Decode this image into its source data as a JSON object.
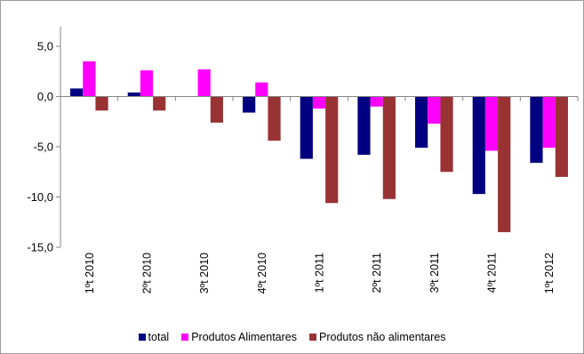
{
  "chart_data": {
    "type": "bar",
    "categories": [
      "1ºt 2010",
      "2ºt 2010",
      "3ºt 2010",
      "4ºt 2010",
      "1ºt 2011",
      "2ºt 2011",
      "3ºt 2011",
      "4ºt 2011",
      "1ºt 2012"
    ],
    "series": [
      {
        "name": "total",
        "color": "#000080",
        "values": [
          0.8,
          0.4,
          0.0,
          -1.6,
          -6.2,
          -5.8,
          -5.1,
          -9.7,
          -6.6
        ]
      },
      {
        "name": "Produtos Alimentares",
        "color": "#ff00ff",
        "values": [
          3.5,
          2.6,
          2.7,
          1.4,
          -1.2,
          -1.0,
          -2.7,
          -5.4,
          -5.1
        ]
      },
      {
        "name": "Produtos não alimentares",
        "color": "#993333",
        "values": [
          -1.4,
          -1.4,
          -2.6,
          -4.4,
          -10.6,
          -10.2,
          -7.5,
          -13.5,
          -8.0
        ]
      }
    ],
    "yticks": [
      "5,0",
      "0,0",
      "-5,0",
      "-10,0",
      "-15,0"
    ],
    "ytick_values": [
      5,
      0,
      -5,
      -10,
      -15
    ],
    "ylim": [
      -15,
      7
    ],
    "grid": false,
    "legend_position": "bottom",
    "title": "",
    "xlabel": "",
    "ylabel": ""
  }
}
